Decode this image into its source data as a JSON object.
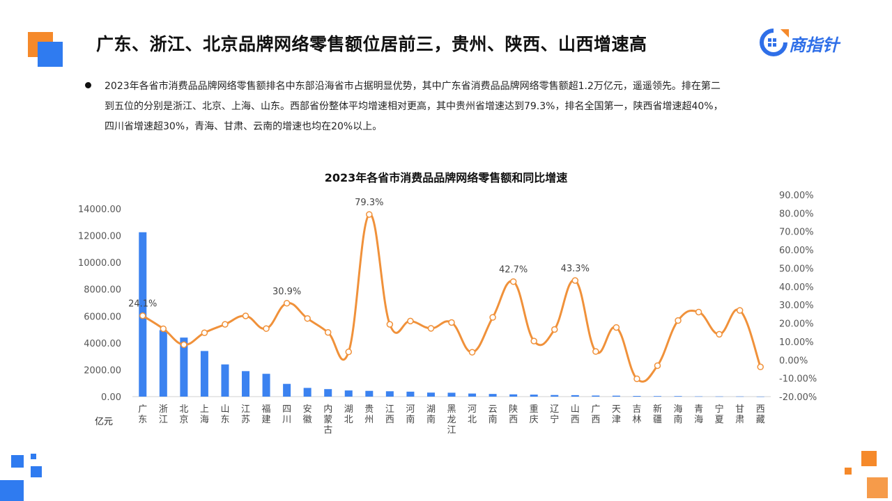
{
  "header": {
    "title": "广东、浙江、北京品牌网络零售额位居前三，贵州、陕西、山西增速高",
    "logo_text": "商指针"
  },
  "bullet": {
    "line1": "2023年各省市消费品品牌网络零售额排名中东部沿海省市占据明显优势，其中广东省消费品品牌网络零售额超1.2万亿元，遥遥领先。排在第二",
    "line2": "到五位的分别是浙江、北京、上海、山东。西部省份整体平均增速相对更高，其中贵州省增速达到79.3%，排名全国第一，陕西省增速超40%，",
    "line3": "四川省增速超30%，青海、甘肃、云南的增速也均在20%以上。"
  },
  "colors": {
    "bar": "#3b82f0",
    "line": "#f0913a",
    "accent_orange": "#f5892a",
    "accent_blue": "#2f7bf0"
  },
  "chart_data": {
    "type": "bar",
    "title": "2023年各省市消费品品牌网络零售额和同比增速",
    "y_unit_label": "亿元",
    "categories": [
      "广东",
      "浙江",
      "北京",
      "上海",
      "山东",
      "江苏",
      "福建",
      "四川",
      "安徽",
      "内蒙古",
      "湖北",
      "贵州",
      "江西",
      "河南",
      "湖南",
      "黑龙江",
      "河北",
      "云南",
      "陕西",
      "重庆",
      "辽宁",
      "山西",
      "广西",
      "天津",
      "吉林",
      "新疆",
      "海南",
      "青海",
      "宁夏",
      "甘肃",
      "西藏"
    ],
    "series": [
      {
        "type": "bar",
        "axis": "left",
        "values": [
          12250,
          4950,
          4400,
          3400,
          2400,
          1900,
          1700,
          950,
          650,
          560,
          460,
          430,
          400,
          370,
          300,
          290,
          230,
          200,
          170,
          150,
          120,
          110,
          80,
          70,
          50,
          40,
          40,
          20,
          15,
          15,
          5
        ]
      },
      {
        "type": "line",
        "axis": "right",
        "values": [
          24.1,
          17.0,
          8.3,
          14.8,
          19.4,
          24.0,
          17.1,
          30.9,
          22.6,
          15.0,
          4.4,
          79.3,
          19.4,
          21.2,
          17.2,
          20.4,
          4.2,
          23.2,
          42.7,
          10.3,
          16.6,
          43.3,
          4.6,
          17.7,
          -10.3,
          -3.1,
          21.5,
          26.1,
          14.0,
          27.0,
          -3.8
        ]
      }
    ],
    "point_labels": [
      {
        "index": 0,
        "text": "24.1%"
      },
      {
        "index": 7,
        "text": "30.9%"
      },
      {
        "index": 11,
        "text": "79.3%"
      },
      {
        "index": 18,
        "text": "42.7%"
      },
      {
        "index": 21,
        "text": "43.3%"
      }
    ],
    "y_left": {
      "min": 0,
      "max": 14000,
      "step": 2000,
      "ticks": [
        "0.00",
        "2000.00",
        "4000.00",
        "6000.00",
        "8000.00",
        "10000.00",
        "12000.00",
        "14000.00"
      ]
    },
    "y_right": {
      "min": -20,
      "max": 90,
      "step": 10,
      "ticks": [
        "-20.00%",
        "-10.00%",
        "0.00%",
        "10.00%",
        "20.00%",
        "30.00%",
        "40.00%",
        "50.00%",
        "60.00%",
        "70.00%",
        "80.00%",
        "90.00%"
      ]
    },
    "grid": false,
    "legend": "none"
  }
}
